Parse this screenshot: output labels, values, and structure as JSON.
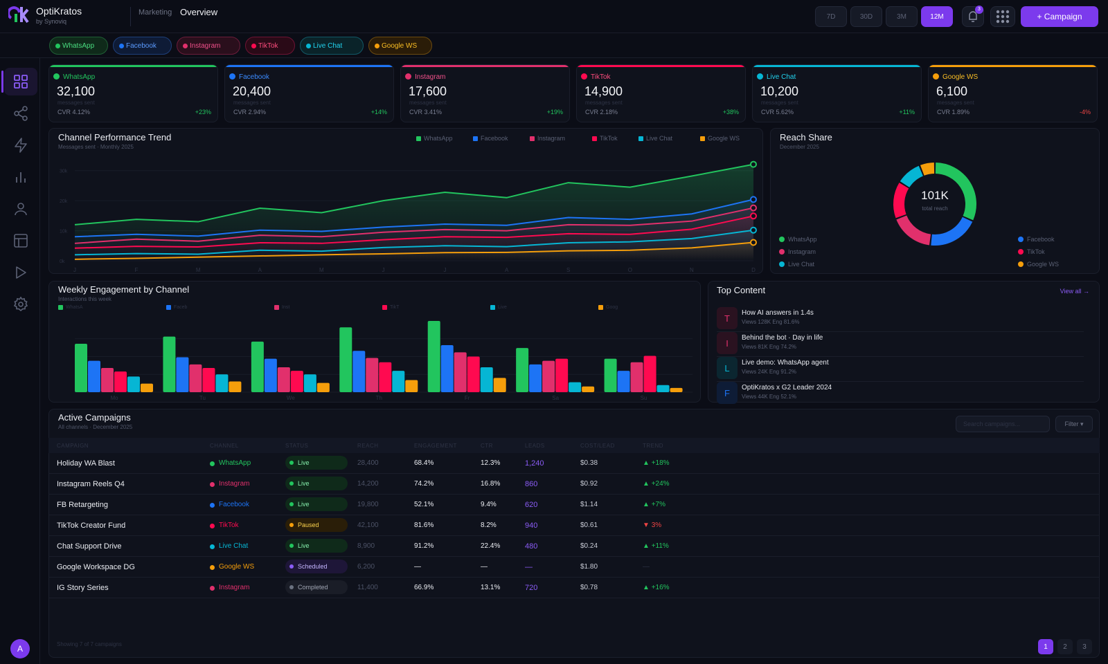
{
  "app": {
    "name": "OptiKratos",
    "byline": "by Synoviq",
    "logo_letter": "ok"
  },
  "breadcrumb": {
    "section": "Marketing",
    "page": "Overview"
  },
  "ranges": [
    "7D",
    "30D",
    "3M",
    "12M"
  ],
  "active_range": "12M",
  "notifications": {
    "count": "3"
  },
  "cta": {
    "label": "+ Campaign"
  },
  "colors": {
    "whatsapp": "#22c55e",
    "facebook": "#1d74f5",
    "instagram": "#e1306c",
    "tiktok": "#ff0a50",
    "livechat": "#06b6d4",
    "googlews": "#f59e0b",
    "accent": "#7c3aed"
  },
  "channels": [
    "WhatsApp",
    "Facebook",
    "Instagram",
    "TikTok",
    "Live Chat",
    "Google WS"
  ],
  "kpis": [
    {
      "channel": "WhatsApp",
      "value": "32,100",
      "label": "messages sent",
      "cvr": "CVR 4.12%",
      "change": "+23%",
      "up": true
    },
    {
      "channel": "Facebook",
      "value": "20,400",
      "label": "messages sent",
      "cvr": "CVR 2.94%",
      "change": "+14%",
      "up": true
    },
    {
      "channel": "Instagram",
      "value": "17,600",
      "label": "messages sent",
      "cvr": "CVR 3.41%",
      "change": "+19%",
      "up": true
    },
    {
      "channel": "TikTok",
      "value": "14,900",
      "label": "messages sent",
      "cvr": "CVR 2.18%",
      "change": "+38%",
      "up": true
    },
    {
      "channel": "Live Chat",
      "value": "10,200",
      "label": "messages sent",
      "cvr": "CVR 5.62%",
      "change": "+11%",
      "up": true
    },
    {
      "channel": "Google WS",
      "value": "6,100",
      "label": "messages sent",
      "cvr": "CVR 1.89%",
      "change": "-4%",
      "up": false
    }
  ],
  "trend": {
    "title": "Channel Performance Trend",
    "subtitle": "Messages sent · Monthly 2025"
  },
  "reach": {
    "title": "Reach Share",
    "subtitle": "December 2025",
    "center_value": "101K",
    "center_label": "total reach"
  },
  "weekly": {
    "title": "Weekly Engagement by Channel",
    "subtitle": "Interactions this week",
    "legend": [
      "WhatsA",
      "Faceb",
      "Inst",
      "TikT",
      "Live",
      "Goog"
    ]
  },
  "top_content": {
    "title": "Top Content",
    "view_all": "View all →",
    "items": [
      {
        "letter": "T",
        "title": "How AI answers in 1.4s",
        "meta": "Views 128K Eng 81.6%",
        "color": "#e1306c"
      },
      {
        "letter": "I",
        "title": "Behind the bot · Day in life",
        "meta": "Views 81K Eng 74.2%",
        "color": "#e1306c"
      },
      {
        "letter": "L",
        "title": "Live demo: WhatsApp agent",
        "meta": "Views 24K Eng 91.2%",
        "color": "#06b6d4"
      },
      {
        "letter": "F",
        "title": "OptiKratos x G2 Leader 2024",
        "meta": "Views 44K Eng 52.1%",
        "color": "#1d74f5"
      }
    ]
  },
  "campaigns": {
    "title": "Active Campaigns",
    "subtitle": "All channels · December 2025",
    "search_placeholder": "Search campaigns...",
    "filter_label": "Filter ▾",
    "columns": [
      "CAMPAIGN",
      "CHANNEL",
      "STATUS",
      "REACH",
      "ENGAGEMENT",
      "CTR",
      "LEADS",
      "COST/LEAD",
      "TREND"
    ],
    "rows": [
      {
        "name": "Holiday WA Blast",
        "channel": "WhatsApp",
        "ckey": "whatsapp",
        "status": "Live",
        "reach": "28,400",
        "engagement": "68.4%",
        "ctr": "12.3%",
        "leads": "1,240",
        "cost": "$0.38",
        "trend": "+18%",
        "dir": "up"
      },
      {
        "name": "Instagram Reels Q4",
        "channel": "Instagram",
        "ckey": "instagram",
        "status": "Live",
        "reach": "14,200",
        "engagement": "74.2%",
        "ctr": "16.8%",
        "leads": "860",
        "cost": "$0.92",
        "trend": "+24%",
        "dir": "up"
      },
      {
        "name": "FB Retargeting",
        "channel": "Facebook",
        "ckey": "facebook",
        "status": "Live",
        "reach": "19,800",
        "engagement": "52.1%",
        "ctr": "9.4%",
        "leads": "620",
        "cost": "$1.14",
        "trend": "+7%",
        "dir": "up"
      },
      {
        "name": "TikTok Creator Fund",
        "channel": "TikTok",
        "ckey": "tiktok",
        "status": "Paused",
        "reach": "42,100",
        "engagement": "81.6%",
        "ctr": "8.2%",
        "leads": "940",
        "cost": "$0.61",
        "trend": "3%",
        "dir": "down"
      },
      {
        "name": "Chat Support Drive",
        "channel": "Live Chat",
        "ckey": "livechat",
        "status": "Live",
        "reach": "8,900",
        "engagement": "91.2%",
        "ctr": "22.4%",
        "leads": "480",
        "cost": "$0.24",
        "trend": "+11%",
        "dir": "up"
      },
      {
        "name": "Google Workspace DG",
        "channel": "Google WS",
        "ckey": "googlews",
        "status": "Scheduled",
        "reach": "6,200",
        "engagement": "—",
        "ctr": "—",
        "leads": "—",
        "cost": "$1.80",
        "trend": "—",
        "dir": "none"
      },
      {
        "name": "IG Story Series",
        "channel": "Instagram",
        "ckey": "instagram",
        "status": "Completed",
        "reach": "11,400",
        "engagement": "66.9%",
        "ctr": "13.1%",
        "leads": "720",
        "cost": "$0.78",
        "trend": "+16%",
        "dir": "up"
      }
    ],
    "footer": "Showing 7 of 7 campaigns",
    "pages": [
      "1",
      "2",
      "3"
    ]
  },
  "user": {
    "initial": "A"
  },
  "chart_data": [
    {
      "type": "area",
      "title": "Channel Performance Trend",
      "subtitle": "Messages sent · Monthly 2025",
      "categories": [
        "J",
        "F",
        "M",
        "A",
        "M",
        "J",
        "J",
        "A",
        "S",
        "O",
        "N",
        "D"
      ],
      "yticks": [
        "0k",
        "10k",
        "20k",
        "30k"
      ],
      "ylim": [
        0,
        35000
      ],
      "series": [
        {
          "name": "WhatsApp",
          "values": [
            12000,
            13800,
            13000,
            17500,
            16000,
            20000,
            22800,
            21000,
            26000,
            24500,
            28200,
            32100
          ]
        },
        {
          "name": "Facebook",
          "values": [
            8000,
            8800,
            8200,
            10200,
            9800,
            11200,
            12200,
            11800,
            14400,
            13800,
            15600,
            20400
          ]
        },
        {
          "name": "Instagram",
          "values": [
            5800,
            7200,
            6500,
            8500,
            8000,
            9500,
            10400,
            10000,
            12000,
            11800,
            13200,
            17600
          ]
        },
        {
          "name": "TikTok",
          "values": [
            4200,
            4800,
            4600,
            6000,
            5800,
            7000,
            8000,
            7800,
            9000,
            8800,
            10500,
            14900
          ]
        },
        {
          "name": "Live Chat",
          "values": [
            2000,
            2400,
            2200,
            3500,
            3200,
            4400,
            5000,
            4700,
            6000,
            6300,
            7400,
            10200
          ]
        },
        {
          "name": "Google WS",
          "values": [
            500,
            800,
            1200,
            1600,
            2000,
            2300,
            2700,
            2800,
            3300,
            3500,
            4300,
            6100
          ]
        }
      ],
      "grid": true,
      "legend": "top-right"
    },
    {
      "type": "pie",
      "title": "Reach Share",
      "subtitle": "December 2025",
      "labels": [
        "WhatsApp",
        "Facebook",
        "Instagram",
        "TikTok",
        "Live Chat",
        "Google WS"
      ],
      "values": [
        32.1,
        20.4,
        17.6,
        14.9,
        10.2,
        6.1
      ],
      "center_value": "101K",
      "legend": "left-and-right"
    },
    {
      "type": "bar",
      "title": "Weekly Engagement by Channel",
      "subtitle": "Interactions this week",
      "categories": [
        "Mo",
        "Tu",
        "We",
        "Th",
        "Fr",
        "Sa",
        "Su"
      ],
      "series": [
        {
          "name": "WhatsA",
          "values": [
            68,
            78,
            71,
            91,
            100,
            62,
            47
          ]
        },
        {
          "name": "Faceb",
          "values": [
            44,
            49,
            47,
            58,
            66,
            39,
            30
          ]
        },
        {
          "name": "Inst",
          "values": [
            34,
            39,
            35,
            48,
            56,
            44,
            42
          ]
        },
        {
          "name": "TikT",
          "values": [
            29,
            34,
            30,
            42,
            50,
            47,
            51
          ]
        },
        {
          "name": "Live",
          "values": [
            22,
            25,
            25,
            30,
            35,
            14,
            10
          ]
        },
        {
          "name": "Goog",
          "values": [
            12,
            15,
            13,
            17,
            20,
            8,
            6
          ]
        }
      ],
      "grid": true,
      "legend": "top-left"
    }
  ]
}
